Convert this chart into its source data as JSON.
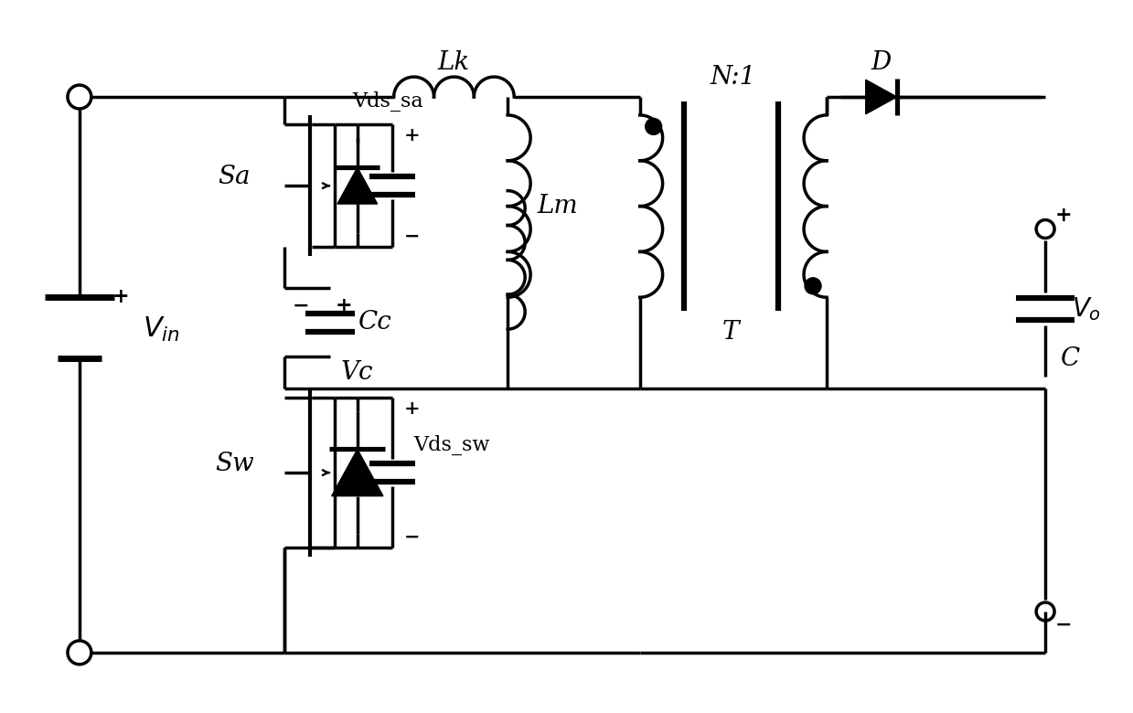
{
  "bg_color": "#ffffff",
  "line_color": "#000000",
  "lw": 2.5,
  "fig_width": 12.39,
  "fig_height": 7.8,
  "xlim": [
    0,
    12.39
  ],
  "ylim": [
    0,
    7.8
  ]
}
